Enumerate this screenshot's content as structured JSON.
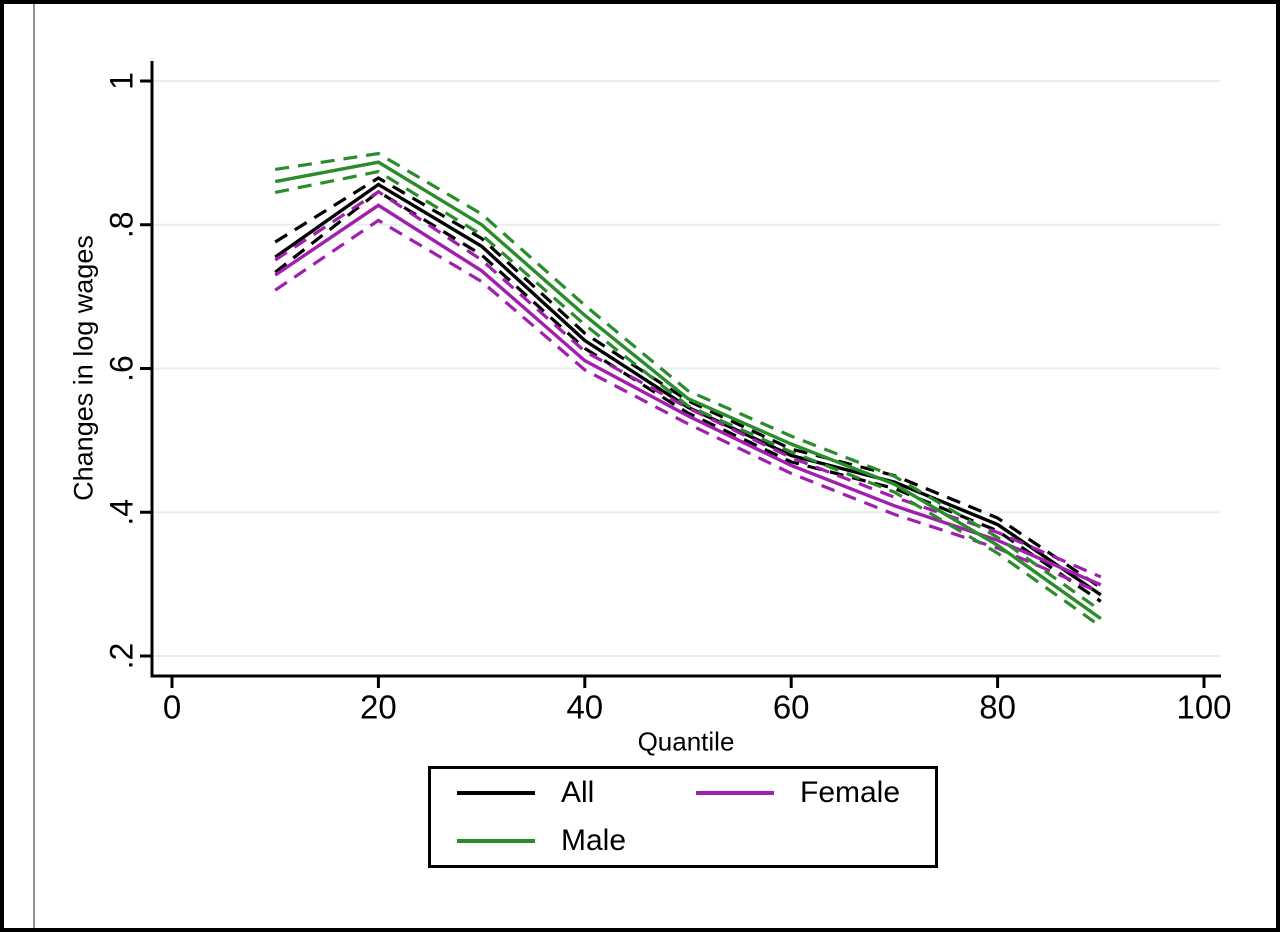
{
  "figure": {
    "background": "#ffffff",
    "border_color": "#000000",
    "grid_color": "#e4eef0"
  },
  "chart_data": {
    "type": "line",
    "title": "",
    "xlabel": "Quantile",
    "ylabel": "Changes in log wages",
    "x": [
      10,
      20,
      30,
      40,
      50,
      60,
      70,
      80,
      90
    ],
    "xlim": [
      0,
      100
    ],
    "ylim": [
      0.2,
      1.0
    ],
    "x_tick_values": [
      0,
      20,
      40,
      60,
      80,
      100
    ],
    "x_tick_labels": [
      "0",
      "20",
      "40",
      "60",
      "80",
      "100"
    ],
    "y_tick_values": [
      1,
      0.8,
      0.6,
      0.4,
      0.2
    ],
    "y_tick_labels": [
      "1",
      ".8",
      ".6",
      ".4",
      ".2"
    ],
    "grid": "horizontal",
    "legend_position": "bottom-center",
    "series": [
      {
        "name": "All",
        "color": "#000000",
        "line_style": "solid",
        "ci_style": "dashed",
        "values": [
          0.755,
          0.856,
          0.77,
          0.639,
          0.546,
          0.479,
          0.442,
          0.383,
          0.285
        ],
        "ci_upper": [
          0.776,
          0.865,
          0.781,
          0.649,
          0.555,
          0.488,
          0.451,
          0.392,
          0.295
        ],
        "ci_lower": [
          0.734,
          0.846,
          0.758,
          0.628,
          0.538,
          0.47,
          0.433,
          0.374,
          0.276
        ]
      },
      {
        "name": "Female",
        "color": "#a01fad",
        "line_style": "solid",
        "ci_style": "dashed",
        "values": [
          0.73,
          0.827,
          0.736,
          0.611,
          0.534,
          0.465,
          0.409,
          0.361,
          0.299
        ],
        "ci_upper": [
          0.751,
          0.846,
          0.751,
          0.624,
          0.545,
          0.476,
          0.421,
          0.372,
          0.31
        ],
        "ci_lower": [
          0.709,
          0.806,
          0.721,
          0.598,
          0.523,
          0.454,
          0.397,
          0.35,
          0.288
        ]
      },
      {
        "name": "Male",
        "color": "#2a8c2a",
        "line_style": "solid",
        "ci_style": "dashed",
        "values": [
          0.86,
          0.887,
          0.8,
          0.674,
          0.558,
          0.495,
          0.439,
          0.354,
          0.252
        ],
        "ci_upper": [
          0.877,
          0.899,
          0.815,
          0.688,
          0.569,
          0.506,
          0.45,
          0.365,
          0.263
        ],
        "ci_lower": [
          0.845,
          0.874,
          0.786,
          0.661,
          0.548,
          0.484,
          0.428,
          0.343,
          0.241
        ]
      }
    ]
  },
  "legend": {
    "items": [
      {
        "label": "All",
        "color": "#000000"
      },
      {
        "label": "Female",
        "color": "#a01fad"
      },
      {
        "label": "Male",
        "color": "#2a8c2a"
      }
    ]
  }
}
